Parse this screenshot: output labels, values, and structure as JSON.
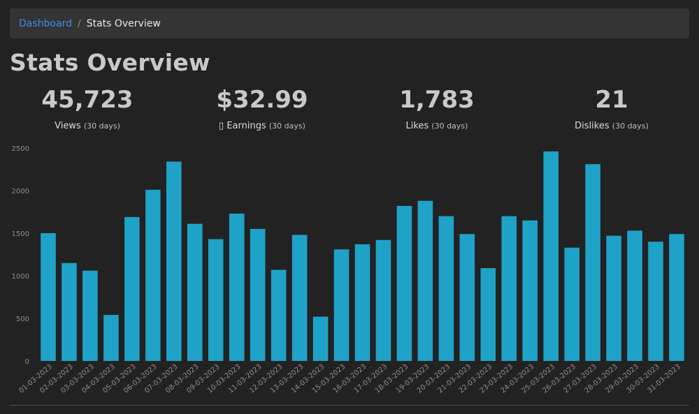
{
  "breadcrumb": {
    "link_label": "Dashboard",
    "separator": "/",
    "current": "Stats Overview"
  },
  "page": {
    "title": "Stats Overview"
  },
  "stats": [
    {
      "value": "45,723",
      "label": "Views",
      "period": "(30 days)"
    },
    {
      "value": "$32.99",
      "label": "▯ Earnings",
      "period": "(30 days)"
    },
    {
      "value": "1,783",
      "label": "Likes",
      "period": "(30 days)"
    },
    {
      "value": "21",
      "label": "Dislikes",
      "period": "(30 days)"
    }
  ],
  "colors": {
    "accent": "#3b8de6",
    "bar": "#1fa2c8",
    "background": "#222222",
    "panel": "#343434"
  },
  "chart_data": {
    "type": "bar",
    "categories": [
      "01-03-2023",
      "02-03-2023",
      "03-03-2023",
      "04-03-2023",
      "05-03-2023",
      "06-03-2023",
      "07-03-2023",
      "08-03-2023",
      "09-03-2023",
      "10-03-2023",
      "11-03-2023",
      "12-03-2023",
      "13-03-2023",
      "14-03-2023",
      "15-03-2023",
      "16-03-2023",
      "17-03-2023",
      "18-03-2023",
      "19-03-2023",
      "20-03-2023",
      "21-03-2023",
      "22-03-2023",
      "23-03-2023",
      "24-03-2023",
      "25-03-2023",
      "26-03-2023",
      "27-03-2023",
      "28-03-2023",
      "29-03-2023",
      "30-03-2023",
      "31-03-2023"
    ],
    "values": [
      1500,
      1150,
      1060,
      540,
      1690,
      2010,
      2340,
      1610,
      1430,
      1730,
      1550,
      1070,
      1480,
      520,
      1310,
      1370,
      1420,
      1820,
      1880,
      1700,
      1490,
      1090,
      1700,
      1650,
      2460,
      1330,
      2310,
      1470,
      1530,
      1400,
      1490
    ],
    "yticks": [
      0,
      500,
      1000,
      1500,
      2000,
      2500
    ],
    "ylim": [
      0,
      2500
    ],
    "grid": false,
    "title": "",
    "xlabel": "",
    "ylabel": ""
  }
}
